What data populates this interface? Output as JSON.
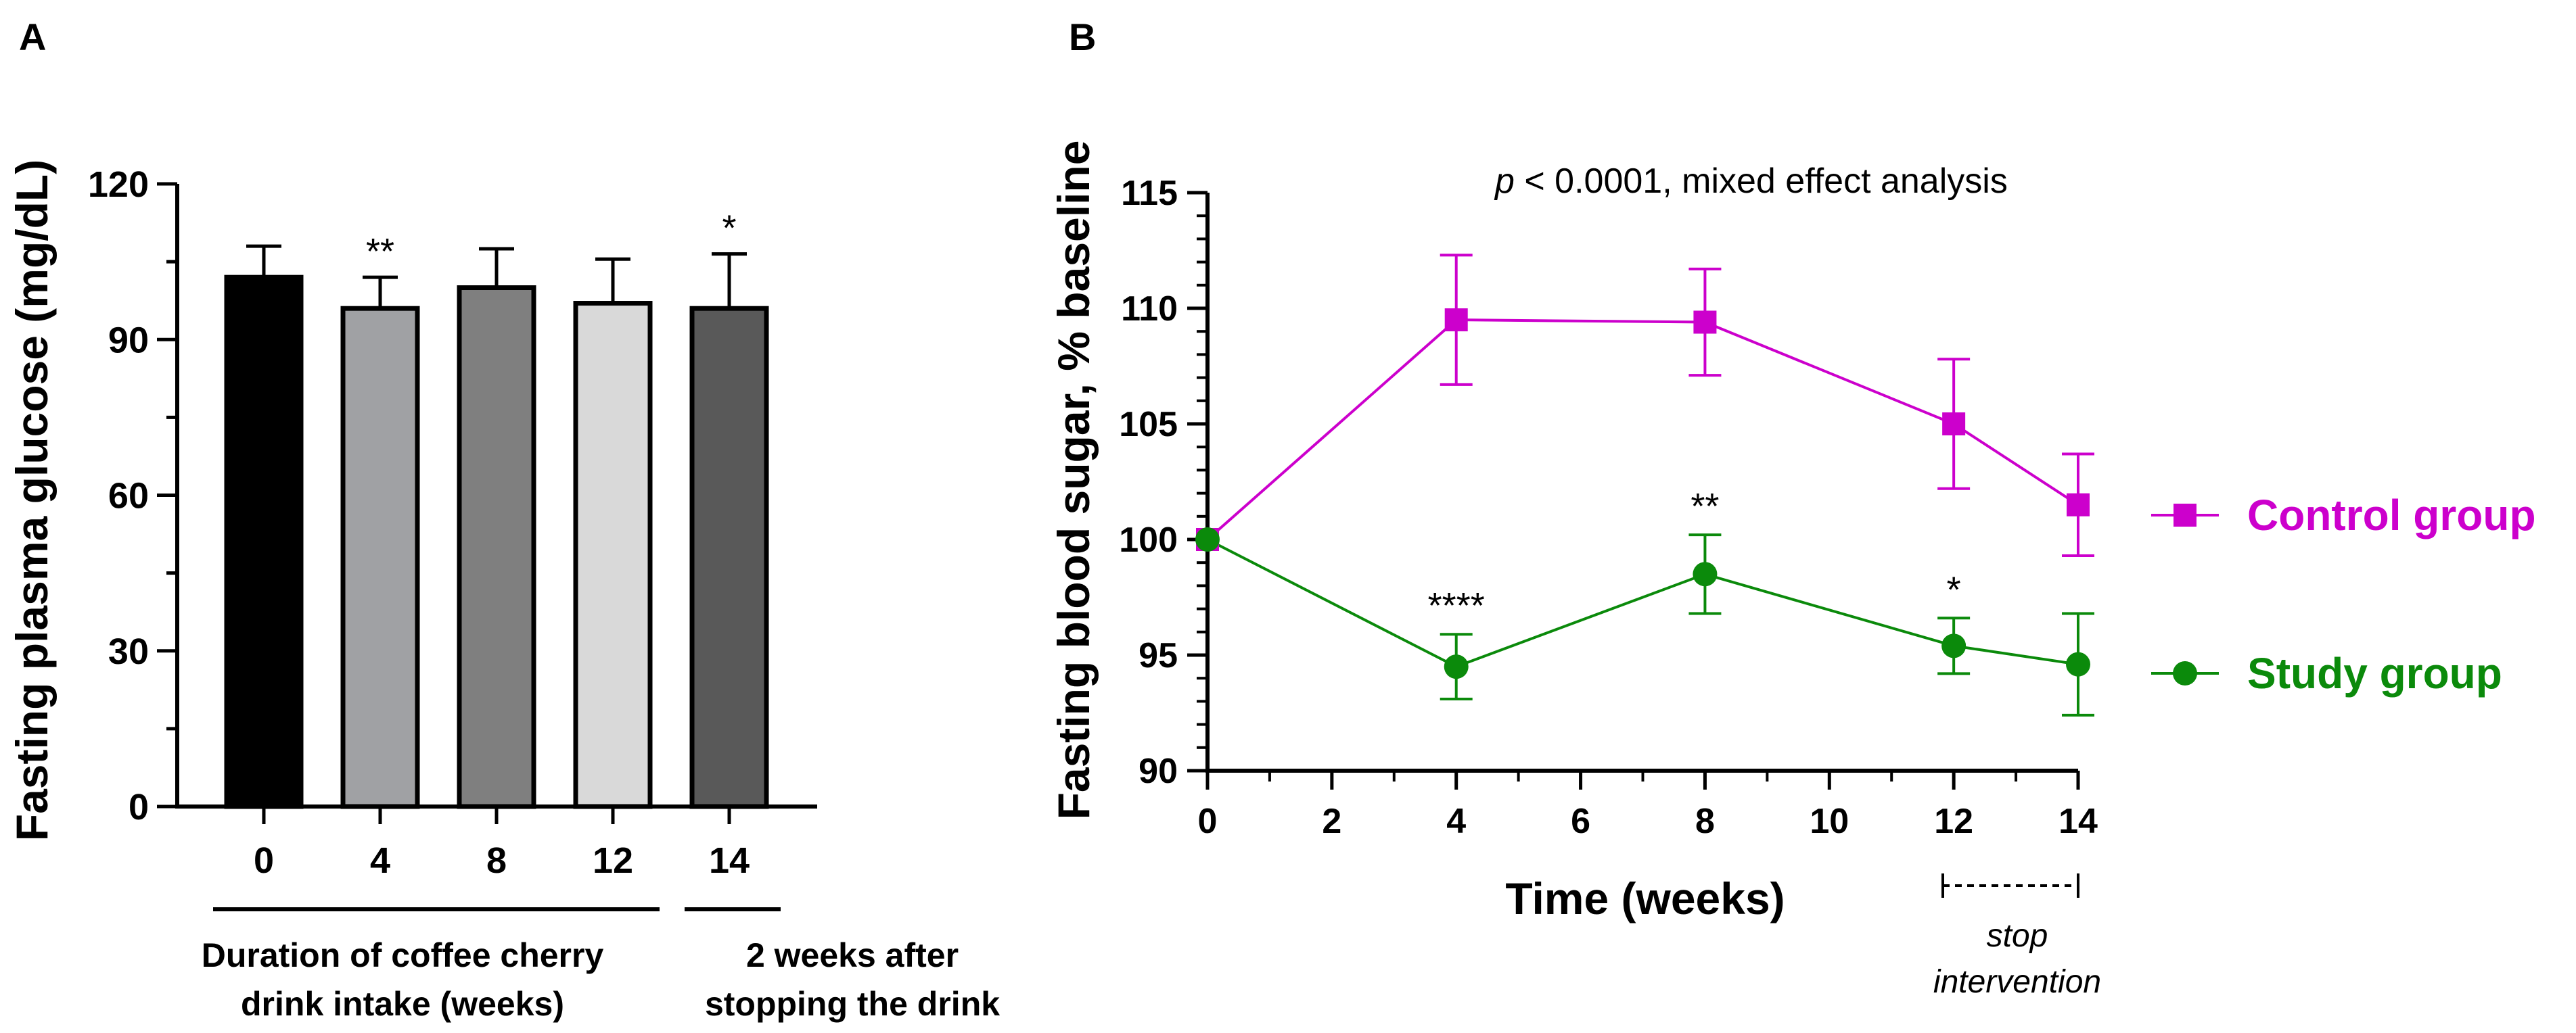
{
  "chart_data": [
    {
      "panel": "A",
      "type": "bar",
      "ylabel": "Fasting plasma glucose (mg/dL)",
      "ylim": [
        0,
        120
      ],
      "yticks": [
        0,
        30,
        60,
        90,
        120
      ],
      "categories": [
        "0",
        "4",
        "8",
        "12",
        "14"
      ],
      "values": [
        102,
        96,
        100,
        97,
        96
      ],
      "errors": [
        6,
        6,
        7.5,
        8.5,
        10.5
      ],
      "bar_colors": [
        "#000000",
        "#a0a1a4",
        "#7f7f7f",
        "#d9d9d9",
        "#595959"
      ],
      "significance": [
        "",
        "**",
        "",
        "",
        "*"
      ],
      "group_labels": [
        {
          "line1": "Duration of coffee cherry",
          "line2": "drink intake (weeks)"
        },
        {
          "line1": "2 weeks after",
          "line2": "stopping the drink"
        }
      ]
    },
    {
      "panel": "B",
      "type": "line",
      "xlabel": "Time (weeks)",
      "ylabel": "Fasting blood sugar, % baseline",
      "xlim": [
        0,
        14
      ],
      "ylim": [
        90,
        115
      ],
      "xticks": [
        0,
        2,
        4,
        6,
        8,
        10,
        12,
        14
      ],
      "yticks": [
        90,
        95,
        100,
        105,
        110,
        115
      ],
      "annotation_italic": "p",
      "annotation_rest": " < 0.0001, mixed effect analysis",
      "stop_intervention": {
        "from": 12,
        "to": 14,
        "line1": "stop",
        "line2": "intervention"
      },
      "series": [
        {
          "name": "Control group",
          "color": "#cc00cc",
          "marker": "square",
          "x": [
            0,
            4,
            8,
            12,
            14
          ],
          "y": [
            100,
            109.5,
            109.4,
            105,
            101.5
          ],
          "err": [
            0,
            2.8,
            2.3,
            2.8,
            2.2
          ],
          "stars": [
            "",
            "",
            "",
            "",
            ""
          ]
        },
        {
          "name": "Study group",
          "color": "#0b8a0b",
          "marker": "circle",
          "x": [
            0,
            4,
            8,
            12,
            14
          ],
          "y": [
            100,
            94.5,
            98.5,
            95.4,
            94.6
          ],
          "err": [
            0,
            1.4,
            1.7,
            1.2,
            2.2
          ],
          "stars": [
            "",
            "****",
            "**",
            "*",
            ""
          ]
        }
      ]
    }
  ]
}
